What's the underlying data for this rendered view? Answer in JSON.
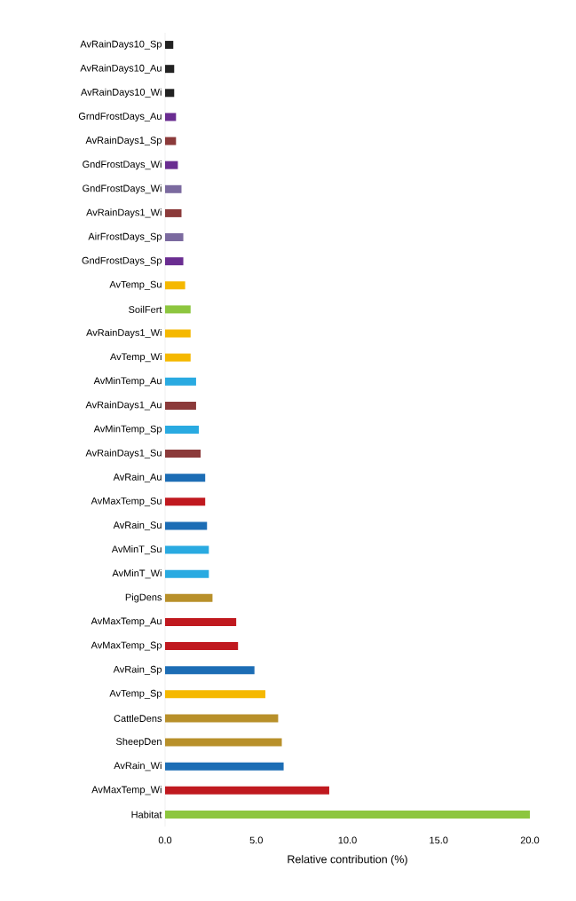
{
  "chart_data": {
    "type": "bar",
    "orientation": "horizontal",
    "xlabel": "Relative contribution (%)",
    "categories": [
      "AvRainDays10_Sp",
      "AvRainDays10_Au",
      "AvRainDays10_Wi",
      "GrndFrostDays_Au",
      "AvRainDays1_Sp",
      "GndFrostDays_Wi",
      "GndFrostDays_Wi",
      "AvRainDays1_Wi",
      "AirFrostDays_Sp",
      "GndFrostDays_Sp",
      "AvTemp_Su",
      "SoilFert",
      "AvRainDays1_Wi",
      "AvTemp_Wi",
      "AvMinTemp_Au",
      "AvRainDays1_Au",
      "AvMinTemp_Sp",
      "AvRainDays1_Su",
      "AvRain_Au",
      "AvMaxTemp_Su",
      "AvRain_Su",
      "AvMinT_Su",
      "AvMinT_Wi",
      "PigDens",
      "AvMaxTemp_Au",
      "AvMaxTemp_Sp",
      "AvRain_Sp",
      "AvTemp_Sp",
      "CattleDens",
      "SheepDen",
      "AvRain_Wi",
      "AvMaxTemp_Wi",
      "Habitat"
    ],
    "values": [
      0.45,
      0.5,
      0.5,
      0.6,
      0.6,
      0.7,
      0.9,
      0.9,
      1.0,
      1.0,
      1.1,
      1.4,
      1.4,
      1.4,
      1.7,
      1.7,
      1.85,
      1.95,
      2.2,
      2.2,
      2.3,
      2.4,
      2.4,
      2.6,
      3.9,
      4.0,
      4.9,
      5.5,
      6.2,
      6.4,
      6.5,
      9.0,
      20.0
    ],
    "colors": [
      "#222222",
      "#222222",
      "#222222",
      "#6a2d91",
      "#8b3a3a",
      "#6a2d91",
      "#7b6a9f",
      "#8b3a3a",
      "#7b6a9f",
      "#6a2d91",
      "#f5b800",
      "#8dc63f",
      "#f5b800",
      "#f5b800",
      "#29aae1",
      "#8b3a3a",
      "#29aae1",
      "#8b3a3a",
      "#1c6db5",
      "#c0191f",
      "#1c6db5",
      "#29aae1",
      "#29aae1",
      "#b8902a",
      "#c0191f",
      "#c0191f",
      "#1c6db5",
      "#f5b800",
      "#b8902a",
      "#b8902a",
      "#1c6db5",
      "#c0191f",
      "#8dc63f"
    ],
    "xlim": [
      0,
      20
    ],
    "xticks": [
      {
        "value": 0,
        "label": "0.0"
      },
      {
        "value": 5,
        "label": "5.0"
      },
      {
        "value": 10,
        "label": "10.0"
      },
      {
        "value": 15,
        "label": "15.0"
      },
      {
        "value": 20,
        "label": "20.0"
      }
    ]
  }
}
